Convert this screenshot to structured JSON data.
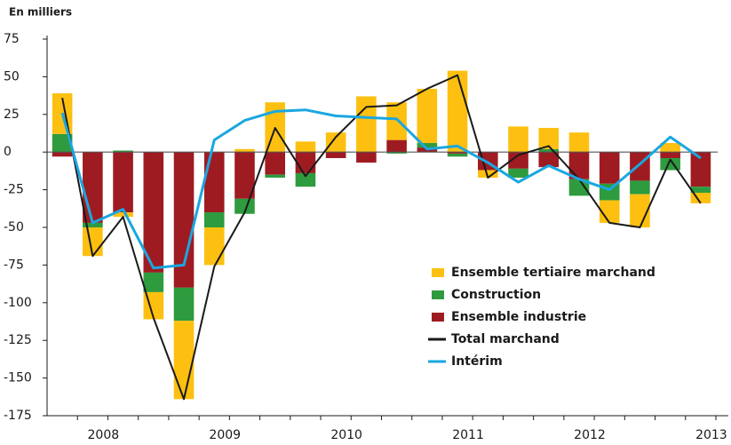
{
  "chart_data": {
    "type": "bar",
    "title": "En milliers",
    "categories": [
      null,
      "2008",
      null,
      null,
      null,
      "2009",
      null,
      null,
      null,
      "2010",
      null,
      null,
      null,
      "2011",
      null,
      null,
      null,
      "2012",
      null,
      null,
      null,
      "2013"
    ],
    "series": [
      {
        "name": "Ensemble tertiaire marchand",
        "type": "bar",
        "color": "#fdc010",
        "values": [
          27,
          -19,
          -3,
          -18,
          -52,
          -25,
          2,
          33,
          7,
          13,
          37,
          25,
          36,
          54,
          -5,
          17,
          14,
          13,
          -15,
          -22,
          6,
          -7
        ]
      },
      {
        "name": "Construction",
        "type": "bar",
        "color": "#2e9b3e",
        "values": [
          12,
          -3,
          1,
          -13,
          -22,
          -10,
          -10,
          -2,
          -9,
          0,
          0,
          -1,
          3,
          -2,
          0,
          -6,
          2,
          -11,
          -11,
          -9,
          -8,
          -4
        ]
      },
      {
        "name": "Ensemble industrie",
        "type": "bar",
        "color": "#9e1b22",
        "values": [
          -3,
          -47,
          -40,
          -80,
          -90,
          -40,
          -31,
          -15,
          -14,
          -4,
          -7,
          8,
          3,
          -1,
          -12,
          -11,
          -10,
          -18,
          -21,
          -19,
          -4,
          -23
        ]
      },
      {
        "name": "Total marchand",
        "type": "line",
        "color": "#1a1a1a",
        "values": [
          36,
          -69,
          -43,
          -110,
          -164,
          -76,
          -40,
          16,
          -16,
          10,
          30,
          31,
          42,
          51,
          -17,
          -2,
          4,
          -18,
          -47,
          -50,
          -5,
          -34
        ]
      },
      {
        "name": "Intérim",
        "type": "line",
        "color": "#1aa7e0",
        "values": [
          26,
          -47,
          -38,
          -77,
          -75,
          8,
          21,
          27,
          28,
          24,
          23,
          22,
          2,
          4,
          -7,
          -20,
          -9,
          -18,
          -25,
          -8,
          10,
          -4
        ]
      }
    ],
    "ylim": [
      -175,
      75
    ],
    "yticks": [
      -175,
      -150,
      -125,
      -100,
      -75,
      -50,
      -25,
      0,
      25,
      50,
      75
    ]
  }
}
